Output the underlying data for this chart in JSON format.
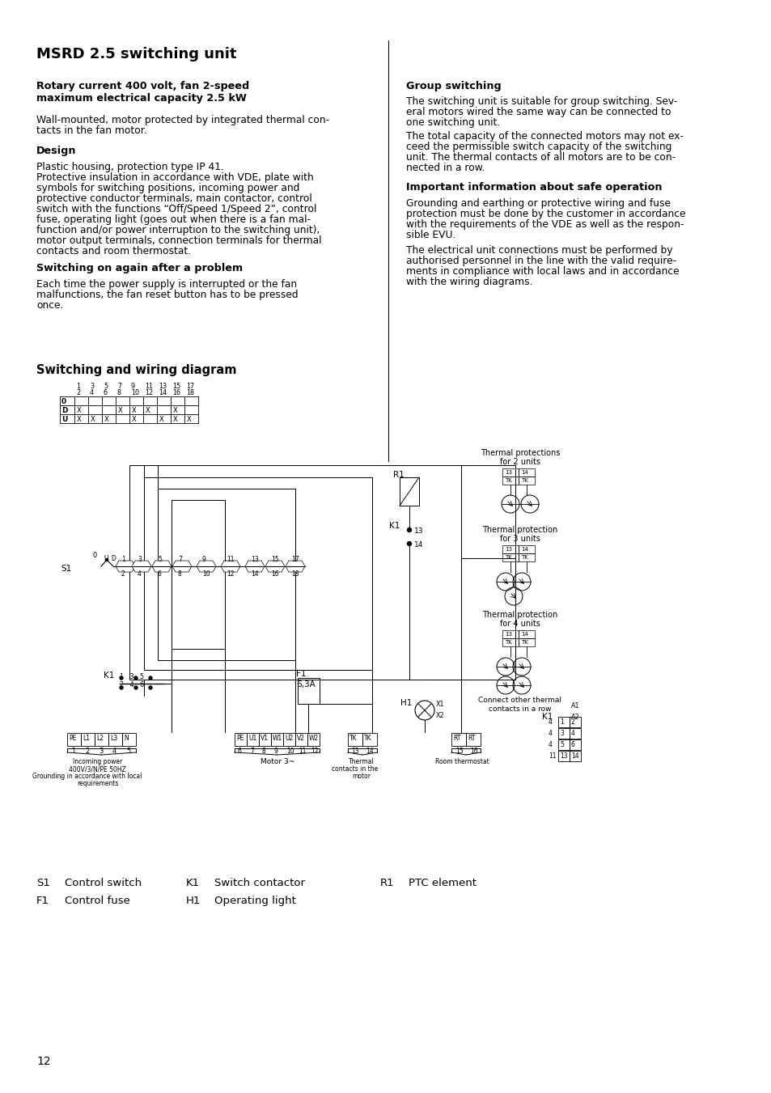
{
  "title": "MSRD 2.5 switching unit",
  "subtitle1": "Rotary current 400 volt, fan 2-speed",
  "subtitle2": "maximum electrical capacity 2.5 kW",
  "body1_line1": "Wall-mounted, motor protected by integrated thermal con-",
  "body1_line2": "tacts in the fan motor.",
  "section_design": "Design",
  "design_lines": [
    "Plastic housing, protection type IP 41.",
    "Protective insulation in accordance with VDE, plate with",
    "symbols for switching positions, incoming power and",
    "protective conductor terminals, main contactor, control",
    "switch with the functions “Off/Speed 1/Speed 2”, control",
    "fuse, operating light (goes out when there is a fan mal-",
    "function and/or power interruption to the switching unit),",
    "motor output terminals, connection terminals for thermal",
    "contacts and room thermostat."
  ],
  "section_switch": "Switching on again after a problem",
  "switch_lines": [
    "Each time the power supply is interrupted or the fan",
    "malfunctions, the fan reset button has to be pressed",
    "once."
  ],
  "right_section1": "Group switching",
  "gs_lines1": [
    "The switching unit is suitable for group switching. Sev-",
    "eral motors wired the same way can be connected to",
    "one switching unit."
  ],
  "gs_lines2": [
    "The total capacity of the connected motors may not ex-",
    "ceed the permissible switch capacity of the switching",
    "unit. The thermal contacts of all motors are to be con-",
    "nected in a row."
  ],
  "right_section2": "Important information about safe operation",
  "safe_lines1": [
    "Grounding and earthing or protective wiring and fuse",
    "protection must be done by the customer in accordance",
    "with the requirements of the VDE as well as the respon-",
    "sible EVU."
  ],
  "safe_lines2": [
    "The electrical unit connections must be performed by",
    "authorised personnel in the line with the valid require-",
    "ments in compliance with local laws and in accordance",
    "with the wiring diagrams."
  ],
  "diagram_title": "Switching and wiring diagram",
  "page_num": "12",
  "bg_color": "#ffffff"
}
